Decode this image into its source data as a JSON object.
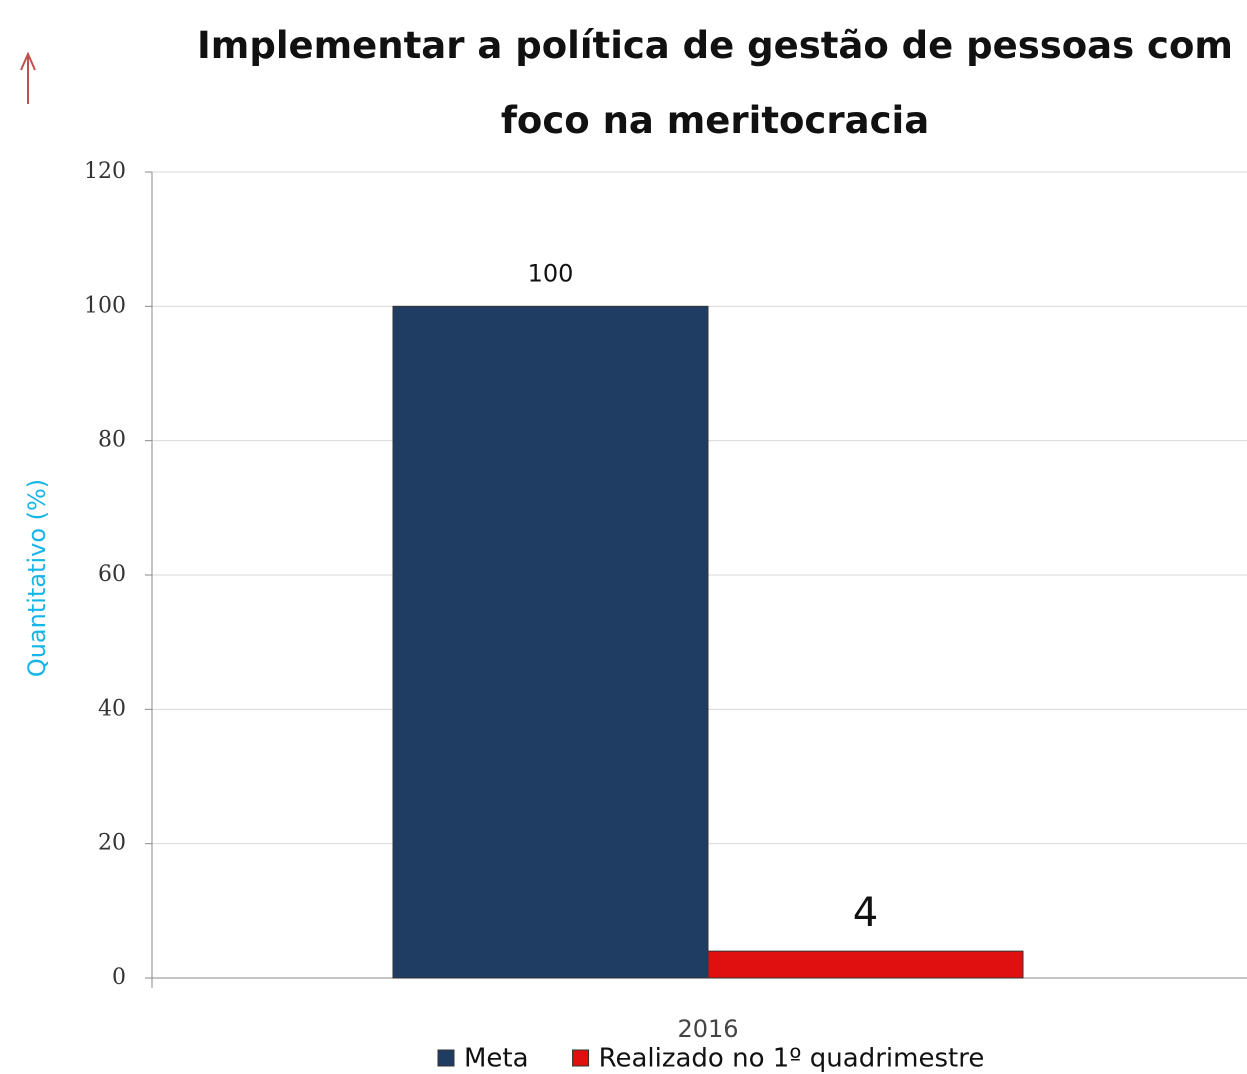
{
  "chart_data": {
    "type": "bar",
    "title": "Implementar a política de gestão de pessoas com foco na meritocracia",
    "ylabel": "Quantitativo (%)",
    "categories": [
      "2016"
    ],
    "series": [
      {
        "name": "Meta",
        "color": "#1f3d63",
        "values": [
          100
        ]
      },
      {
        "name": "Realizado no 1º quadrimestre",
        "color": "#e01010",
        "values": [
          4
        ]
      }
    ],
    "ylim": [
      0,
      120
    ],
    "yticks": [
      0,
      20,
      40,
      60,
      80,
      100,
      120
    ],
    "grid": true,
    "legend": "bottom"
  }
}
